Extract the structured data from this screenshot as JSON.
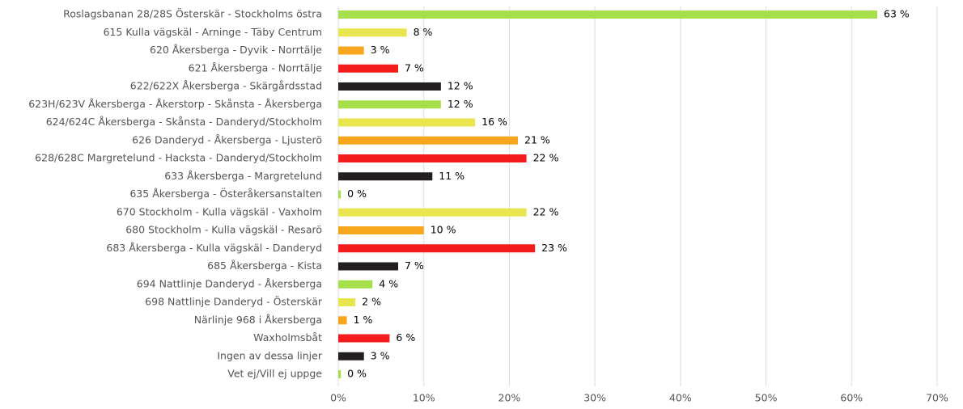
{
  "chart_data": {
    "type": "bar",
    "orientation": "horizontal",
    "categories": [
      "Roslagsbanan 28/28S Österskär - Stockholms östra",
      "615 Kulla vägskäl - Arninge - Täby Centrum",
      "620 Åkersberga - Dyvik - Norrtälje",
      "621 Åkersberga - Norrtälje",
      "622/622X Åkersberga - Skärgårdsstad",
      "623H/623V Åkersberga - Åkerstorp - Skånsta - Åkersberga",
      "624/624C Åkersberga - Skånsta - Danderyd/Stockholm",
      "626 Danderyd - Åkersberga - Ljusterö",
      "628/628C Margretelund - Hacksta - Danderyd/Stockholm",
      "633 Åkersberga - Margretelund",
      "635 Åkersberga - Österåkersanstalten",
      "670 Stockholm - Kulla vägskäl - Vaxholm",
      "680 Stockholm - Kulla vägskäl - Resarö",
      "683 Åkersberga - Kulla vägskäl - Danderyd",
      "685 Åkersberga - Kista",
      "694 Nattlinje Danderyd - Åkersberga",
      "698 Nattlinje Danderyd - Österskär",
      "Närlinje 968 i Åkersberga",
      "Waxholmsbåt",
      "Ingen av dessa linjer",
      "Vet ej/Vill ej uppge"
    ],
    "values": [
      63,
      8,
      3,
      7,
      12,
      12,
      16,
      21,
      22,
      11,
      0.3,
      22,
      10,
      23,
      7,
      4,
      2,
      1,
      6,
      3,
      0.3
    ],
    "value_labels": [
      "63 %",
      "8 %",
      "3 %",
      "7 %",
      "12 %",
      "12 %",
      "16 %",
      "21 %",
      "22 %",
      "11 %",
      "0 %",
      "22 %",
      "10 %",
      "23 %",
      "7 %",
      "4 %",
      "2 %",
      "1 %",
      "6 %",
      "3 %",
      "0 %"
    ],
    "colors": [
      "#a5e04b",
      "#e8e54e",
      "#f9a61f",
      "#f51c1c",
      "#231f20",
      "#a5e04b",
      "#e8e54e",
      "#f9a61f",
      "#f51c1c",
      "#231f20",
      "#a5e04b",
      "#e8e54e",
      "#f9a61f",
      "#f51c1c",
      "#231f20",
      "#a5e04b",
      "#e8e54e",
      "#f9a61f",
      "#f51c1c",
      "#231f20",
      "#a5e04b"
    ],
    "xlim": [
      0,
      70
    ],
    "xticks": [
      {
        "value": 0,
        "label": "0%"
      },
      {
        "value": 10,
        "label": "10%"
      },
      {
        "value": 20,
        "label": "20%"
      },
      {
        "value": 30,
        "label": "30%"
      },
      {
        "value": 40,
        "label": "40%"
      },
      {
        "value": 50,
        "label": "50%"
      },
      {
        "value": 60,
        "label": "60%"
      },
      {
        "value": 70,
        "label": "70%"
      }
    ],
    "grid": true
  }
}
